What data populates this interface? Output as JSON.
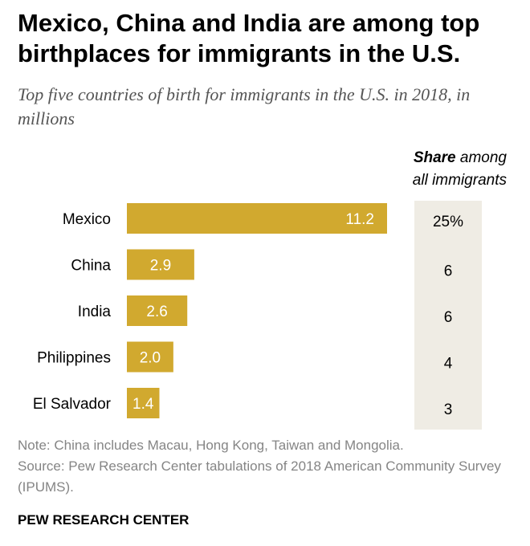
{
  "title": "Mexico, China and India are among top birthplaces for immigrants in the U.S.",
  "subtitle": "Top five countries of birth for immigrants in the U.S. in 2018, in millions",
  "share_header": {
    "bold": "Share",
    "rest_line1": " among",
    "line2": "all immigrants"
  },
  "chart_data": {
    "type": "bar",
    "orientation": "horizontal",
    "categories": [
      "Mexico",
      "China",
      "India",
      "Philippines",
      "El Salvador"
    ],
    "values": [
      11.2,
      2.9,
      2.6,
      2.0,
      1.4
    ],
    "value_labels": [
      "11.2",
      "2.9",
      "2.6",
      "2.0",
      "1.4"
    ],
    "share_labels": [
      "25%",
      "6",
      "6",
      "4",
      "3"
    ],
    "unit": "millions",
    "grid": false,
    "colors": {
      "bar": "#d1a92f",
      "share_bg": "#efece4"
    }
  },
  "notes": {
    "note": "Note: China includes Macau, Hong Kong, Taiwan and Mongolia.",
    "source": "Source: Pew Research Center tabulations of 2018 American Community Survey (IPUMS)."
  },
  "footer": "PEW RESEARCH CENTER"
}
